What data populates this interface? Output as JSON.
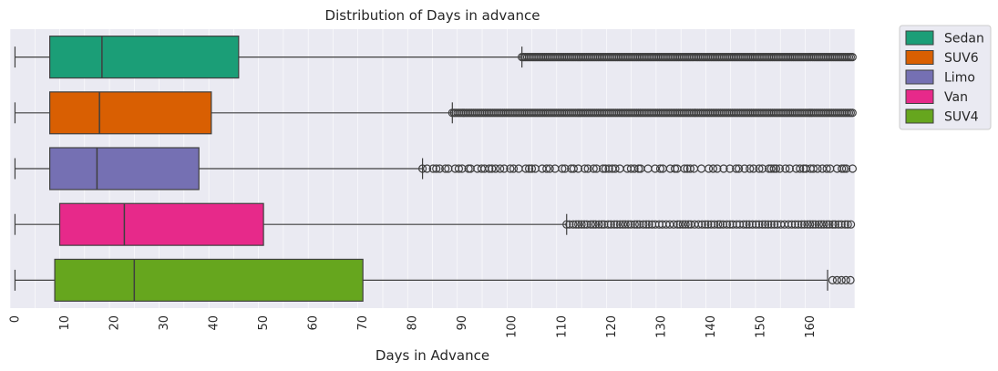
{
  "chart_data": {
    "type": "boxplot",
    "orientation": "horizontal",
    "title": "Distribution of Days in advance",
    "xlabel": "Days in Advance",
    "ylabel": "",
    "xlim": [
      -1,
      169
    ],
    "x_ticks": [
      0,
      10,
      20,
      30,
      40,
      50,
      60,
      70,
      80,
      90,
      100,
      110,
      120,
      130,
      140,
      150,
      160
    ],
    "x_tick_rotation": 90,
    "grid": true,
    "legend_position": "outside-top-right",
    "series": [
      {
        "name": "Sedan",
        "color": "#1b9e77",
        "whisker_low": 0,
        "q1": 7,
        "median": 17.5,
        "q3": 45,
        "whisker_high": 102,
        "outliers_from": 102,
        "outliers_to": 169,
        "outlier_density": "dense"
      },
      {
        "name": "SUV6",
        "color": "#d95f02",
        "whisker_low": 0,
        "q1": 7,
        "median": 17,
        "q3": 39.5,
        "whisker_high": 88,
        "outliers_from": 88,
        "outliers_to": 169,
        "outlier_density": "dense"
      },
      {
        "name": "Limo",
        "color": "#7570b3",
        "whisker_low": 0,
        "q1": 7,
        "median": 16.5,
        "q3": 37,
        "whisker_high": 82,
        "outliers_from": 82,
        "outliers_to": 169,
        "outlier_density": "sparse"
      },
      {
        "name": "Van",
        "color": "#e7298a",
        "whisker_low": 0,
        "q1": 9,
        "median": 22,
        "q3": 50,
        "whisker_high": 111,
        "outliers_from": 111,
        "outliers_to": 169,
        "outlier_density": "medium"
      },
      {
        "name": "SUV4",
        "color": "#66a61e",
        "whisker_low": 0,
        "q1": 8,
        "median": 24,
        "q3": 70,
        "whisker_high": 163.5,
        "outliers_from": 164.5,
        "outliers_to": 169,
        "outlier_density": "few"
      }
    ]
  }
}
